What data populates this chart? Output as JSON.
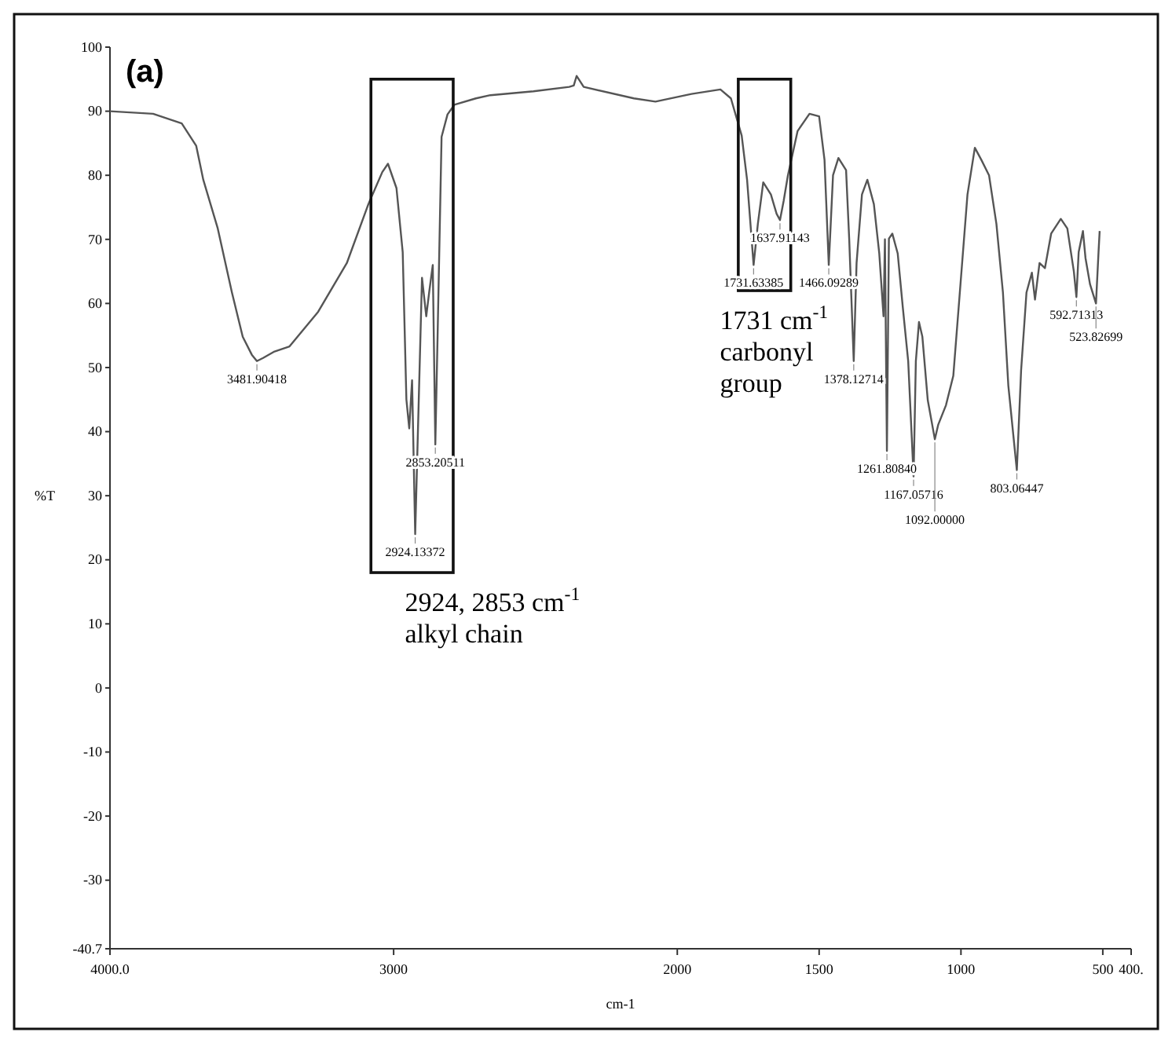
{
  "chart_data": {
    "type": "line",
    "title": "(a)",
    "xlabel": "cm-1",
    "ylabel": "%T",
    "xlim": [
      4000,
      400
    ],
    "xticks": [
      {
        "value": 4000,
        "label": "4000.0"
      },
      3000,
      2000,
      1500,
      1000,
      500,
      {
        "value": 400,
        "label": "400."
      }
    ],
    "ylim": [
      -40.7,
      100
    ],
    "yticks": [
      100,
      90,
      80,
      70,
      60,
      50,
      40,
      30,
      20,
      10,
      0,
      -10,
      -20,
      -30,
      -40.7
    ],
    "grid": false,
    "marker": "none",
    "line_style": "solid",
    "series": [
      {
        "color": "#555555",
        "x": [
          4000,
          3848,
          3747,
          3696,
          3671,
          3620,
          3570,
          3532,
          3500,
          3482,
          3460,
          3420,
          3367,
          3266,
          3165,
          3089,
          3040,
          3020,
          2990,
          2968,
          2955,
          2945,
          2935,
          2924,
          2912,
          2900,
          2885,
          2874,
          2862,
          2853,
          2845,
          2831,
          2810,
          2786,
          2710,
          2659,
          2507,
          2381,
          2365,
          2355,
          2330,
          2153,
          2077,
          1950,
          1848,
          1811,
          1773,
          1754,
          1731,
          1716,
          1697,
          1670,
          1650,
          1638,
          1625,
          1610,
          1576,
          1534,
          1500,
          1481,
          1466,
          1451,
          1432,
          1405,
          1394,
          1378,
          1368,
          1349,
          1330,
          1307,
          1288,
          1273,
          1268,
          1261,
          1254,
          1242,
          1223,
          1205,
          1186,
          1167,
          1159,
          1148,
          1136,
          1117,
          1092,
          1080,
          1053,
          1027,
          1004,
          977,
          951,
          928,
          901,
          875,
          852,
          833,
          803,
          788,
          769,
          750,
          739,
          723,
          704,
          682,
          648,
          625,
          602,
          593,
          585,
          570,
          561,
          545,
          524,
          515,
          511
        ],
        "values": [
          90,
          89.6,
          88.1,
          84.6,
          79.3,
          71.7,
          61.7,
          54.8,
          52,
          51,
          51.5,
          52.5,
          53.3,
          58.7,
          66.3,
          75.5,
          80.5,
          81.8,
          78,
          68,
          45,
          40.5,
          48,
          24,
          44,
          64,
          58,
          62,
          66,
          38,
          55,
          86,
          89.5,
          91,
          92,
          92.5,
          93.1,
          93.8,
          94,
          95.5,
          93.8,
          92,
          91.5,
          92.7,
          93.4,
          92,
          86.2,
          79.3,
          66,
          72.4,
          78.9,
          77,
          74,
          73,
          76,
          80,
          86.9,
          89.6,
          89.2,
          82.4,
          66,
          80,
          82.7,
          80.8,
          70.1,
          51,
          66.3,
          77,
          79.3,
          75.5,
          67.8,
          58,
          70,
          37,
          70.1,
          70.9,
          67.8,
          59.4,
          51,
          33,
          51,
          57.1,
          54.8,
          44.9,
          38.8,
          41.1,
          44.1,
          48.7,
          61.7,
          77,
          84.3,
          82.4,
          80,
          72.4,
          61.7,
          47.2,
          34,
          49.5,
          61.7,
          64.8,
          60.6,
          66.3,
          65.5,
          70.9,
          73.2,
          71.7,
          65,
          61,
          68,
          71.3,
          67.1,
          63,
          60,
          68,
          71.3
        ]
      }
    ],
    "annotations": [
      {
        "text": "3481.90418",
        "x": 3482,
        "y": 51
      },
      {
        "text": "2924.13372",
        "x": 2924,
        "y": 24
      },
      {
        "text": "2853.20511",
        "x": 2853,
        "y": 38
      },
      {
        "text": "1731.63385",
        "x": 1731,
        "y": 66
      },
      {
        "text": "1637.91143",
        "x": 1638,
        "y": 73
      },
      {
        "text": "1466.09289",
        "x": 1466,
        "y": 66
      },
      {
        "text": "1378.12714",
        "x": 1378,
        "y": 51
      },
      {
        "text": "1261.80840",
        "x": 1261,
        "y": 37
      },
      {
        "text": "1167.05716",
        "x": 1167,
        "y": 33
      },
      {
        "text": "1092.00000",
        "x": 1092,
        "y": 38.8
      },
      {
        "text": "803.06447",
        "x": 803,
        "y": 34
      },
      {
        "text": "592.71313",
        "x": 593,
        "y": 61
      },
      {
        "text": "523.82699",
        "x": 524,
        "y": 60
      },
      "2924, 2853 cm$^{-1}$\nalkyl chain",
      "1731 cm$^{-1}$\ncarbonyl\ngroup"
    ]
  }
}
